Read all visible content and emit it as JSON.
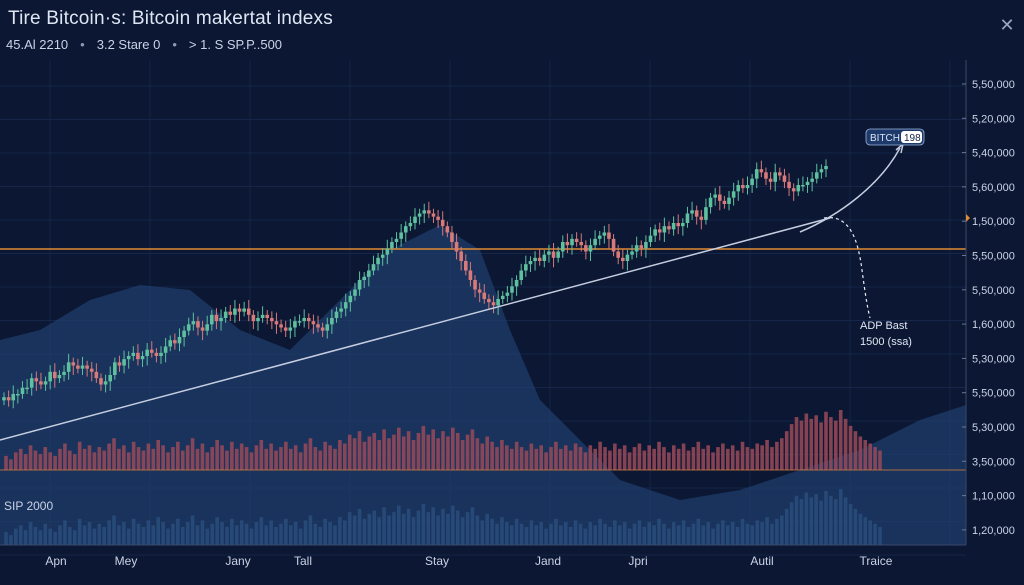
{
  "header": {
    "title": "Tire Bitcoin·s: Bitcoin makertat indexs",
    "stats": [
      "45.Al 2210",
      "3.2 Stare 0",
      "> 1. S SP.P..500"
    ],
    "close_icon": "close-icon"
  },
  "colors": {
    "background": "#0b1733",
    "up_candle": "#5fc0a0",
    "down_candle": "#d97a7a",
    "level_line": "#e08a32",
    "trend_line": "#c6cde0",
    "area_fill": "#1f3d6b",
    "volume_up": "#2a4f7e",
    "volume_down": "#9a4a58"
  },
  "chart_data": {
    "type": "candlestick",
    "title": "Tire Bitcoin·s: Bitcoin makertat indexs",
    "xlabel": "",
    "ylabel": "",
    "x_ticks": [
      "Apn",
      "Mey",
      "Jany",
      "Tall",
      "Stay",
      "Jand",
      "Jpri",
      "Autil",
      "Traice"
    ],
    "y_ticks": [
      "5,50,000",
      "5,20,000",
      "5,40,000",
      "5,60,000",
      "1,50,000",
      "5,50,000",
      "5,50,000",
      "1,60,000",
      "5,30,000",
      "5,50,000",
      "5,30,000",
      "3,50,000",
      "1,10,000",
      "1,20,000"
    ],
    "closes": [
      23,
      22,
      24,
      24,
      26,
      26,
      29,
      28,
      27,
      28,
      31,
      29,
      30,
      31,
      34,
      33,
      32,
      33,
      32,
      31,
      29,
      27,
      28,
      30,
      34,
      33,
      35,
      36,
      37,
      35,
      36,
      38,
      37,
      36,
      37,
      39,
      41,
      40,
      42,
      44,
      46,
      47,
      45,
      44,
      46,
      49,
      47,
      48,
      50,
      49,
      51,
      50,
      51,
      49,
      47,
      48,
      49,
      48,
      47,
      46,
      45,
      44,
      45,
      47,
      47,
      48,
      47,
      46,
      45,
      44,
      46,
      48,
      50,
      51,
      53,
      55,
      57,
      60,
      61,
      63,
      65,
      67,
      68,
      70,
      72,
      73,
      75,
      77,
      78,
      80,
      81,
      82,
      81,
      80,
      79,
      77,
      75,
      72,
      69,
      66,
      63,
      60,
      57,
      56,
      54,
      53,
      52,
      54,
      55,
      56,
      58,
      60,
      63,
      65,
      66,
      67,
      66,
      68,
      69,
      67,
      69,
      72,
      71,
      73,
      72,
      71,
      69,
      71,
      73,
      74,
      75,
      73,
      69,
      67,
      66,
      68,
      69,
      71,
      70,
      72,
      74,
      76,
      75,
      77,
      76,
      78,
      77,
      78,
      81,
      82,
      80,
      79,
      83,
      86,
      87,
      85,
      84,
      86,
      88,
      90,
      89,
      90,
      92,
      95,
      94,
      92,
      91,
      94,
      93,
      91,
      89,
      88,
      90,
      90,
      91,
      92,
      94,
      95,
      96
    ],
    "volumes": [
      8,
      6,
      10,
      12,
      9,
      14,
      11,
      9,
      13,
      10,
      8,
      12,
      15,
      11,
      9,
      16,
      12,
      14,
      10,
      13,
      11,
      15,
      18,
      12,
      14,
      10,
      16,
      13,
      11,
      15,
      12,
      17,
      14,
      10,
      13,
      16,
      11,
      14,
      18,
      12,
      15,
      10,
      13,
      17,
      14,
      11,
      16,
      12,
      15,
      13,
      10,
      14,
      17,
      12,
      15,
      11,
      13,
      16,
      12,
      14,
      10,
      15,
      18,
      13,
      11,
      16,
      14,
      12,
      17,
      15,
      20,
      18,
      22,
      16,
      19,
      21,
      17,
      23,
      18,
      20,
      24,
      19,
      22,
      17,
      21,
      25,
      20,
      23,
      18,
      22,
      19,
      24,
      21,
      17,
      20,
      23,
      18,
      15,
      19,
      16,
      13,
      17,
      14,
      12,
      16,
      13,
      11,
      15,
      12,
      14,
      10,
      13,
      16,
      12,
      14,
      11,
      15,
      13,
      10,
      14,
      12,
      16,
      13,
      11,
      15,
      12,
      14,
      10,
      13,
      15,
      11,
      14,
      12,
      16,
      13,
      10,
      14,
      12,
      15,
      11,
      13,
      16,
      12,
      14,
      10,
      13,
      15,
      12,
      14,
      11,
      16,
      13,
      12,
      15,
      14,
      17,
      13,
      16,
      18,
      22,
      26,
      30,
      28,
      32,
      29,
      31,
      27,
      33,
      30,
      28,
      34,
      29,
      25,
      22,
      19,
      17,
      15,
      13,
      11
    ],
    "price_range": [
      0,
      120
    ],
    "annotations": [
      {
        "label": "BITCH",
        "badge": "198"
      },
      {
        "text1": "ADP Bast",
        "text2": "1500 (ssa)"
      }
    ],
    "lower_label": "SIP 2000",
    "grid": true,
    "legend": "none"
  }
}
